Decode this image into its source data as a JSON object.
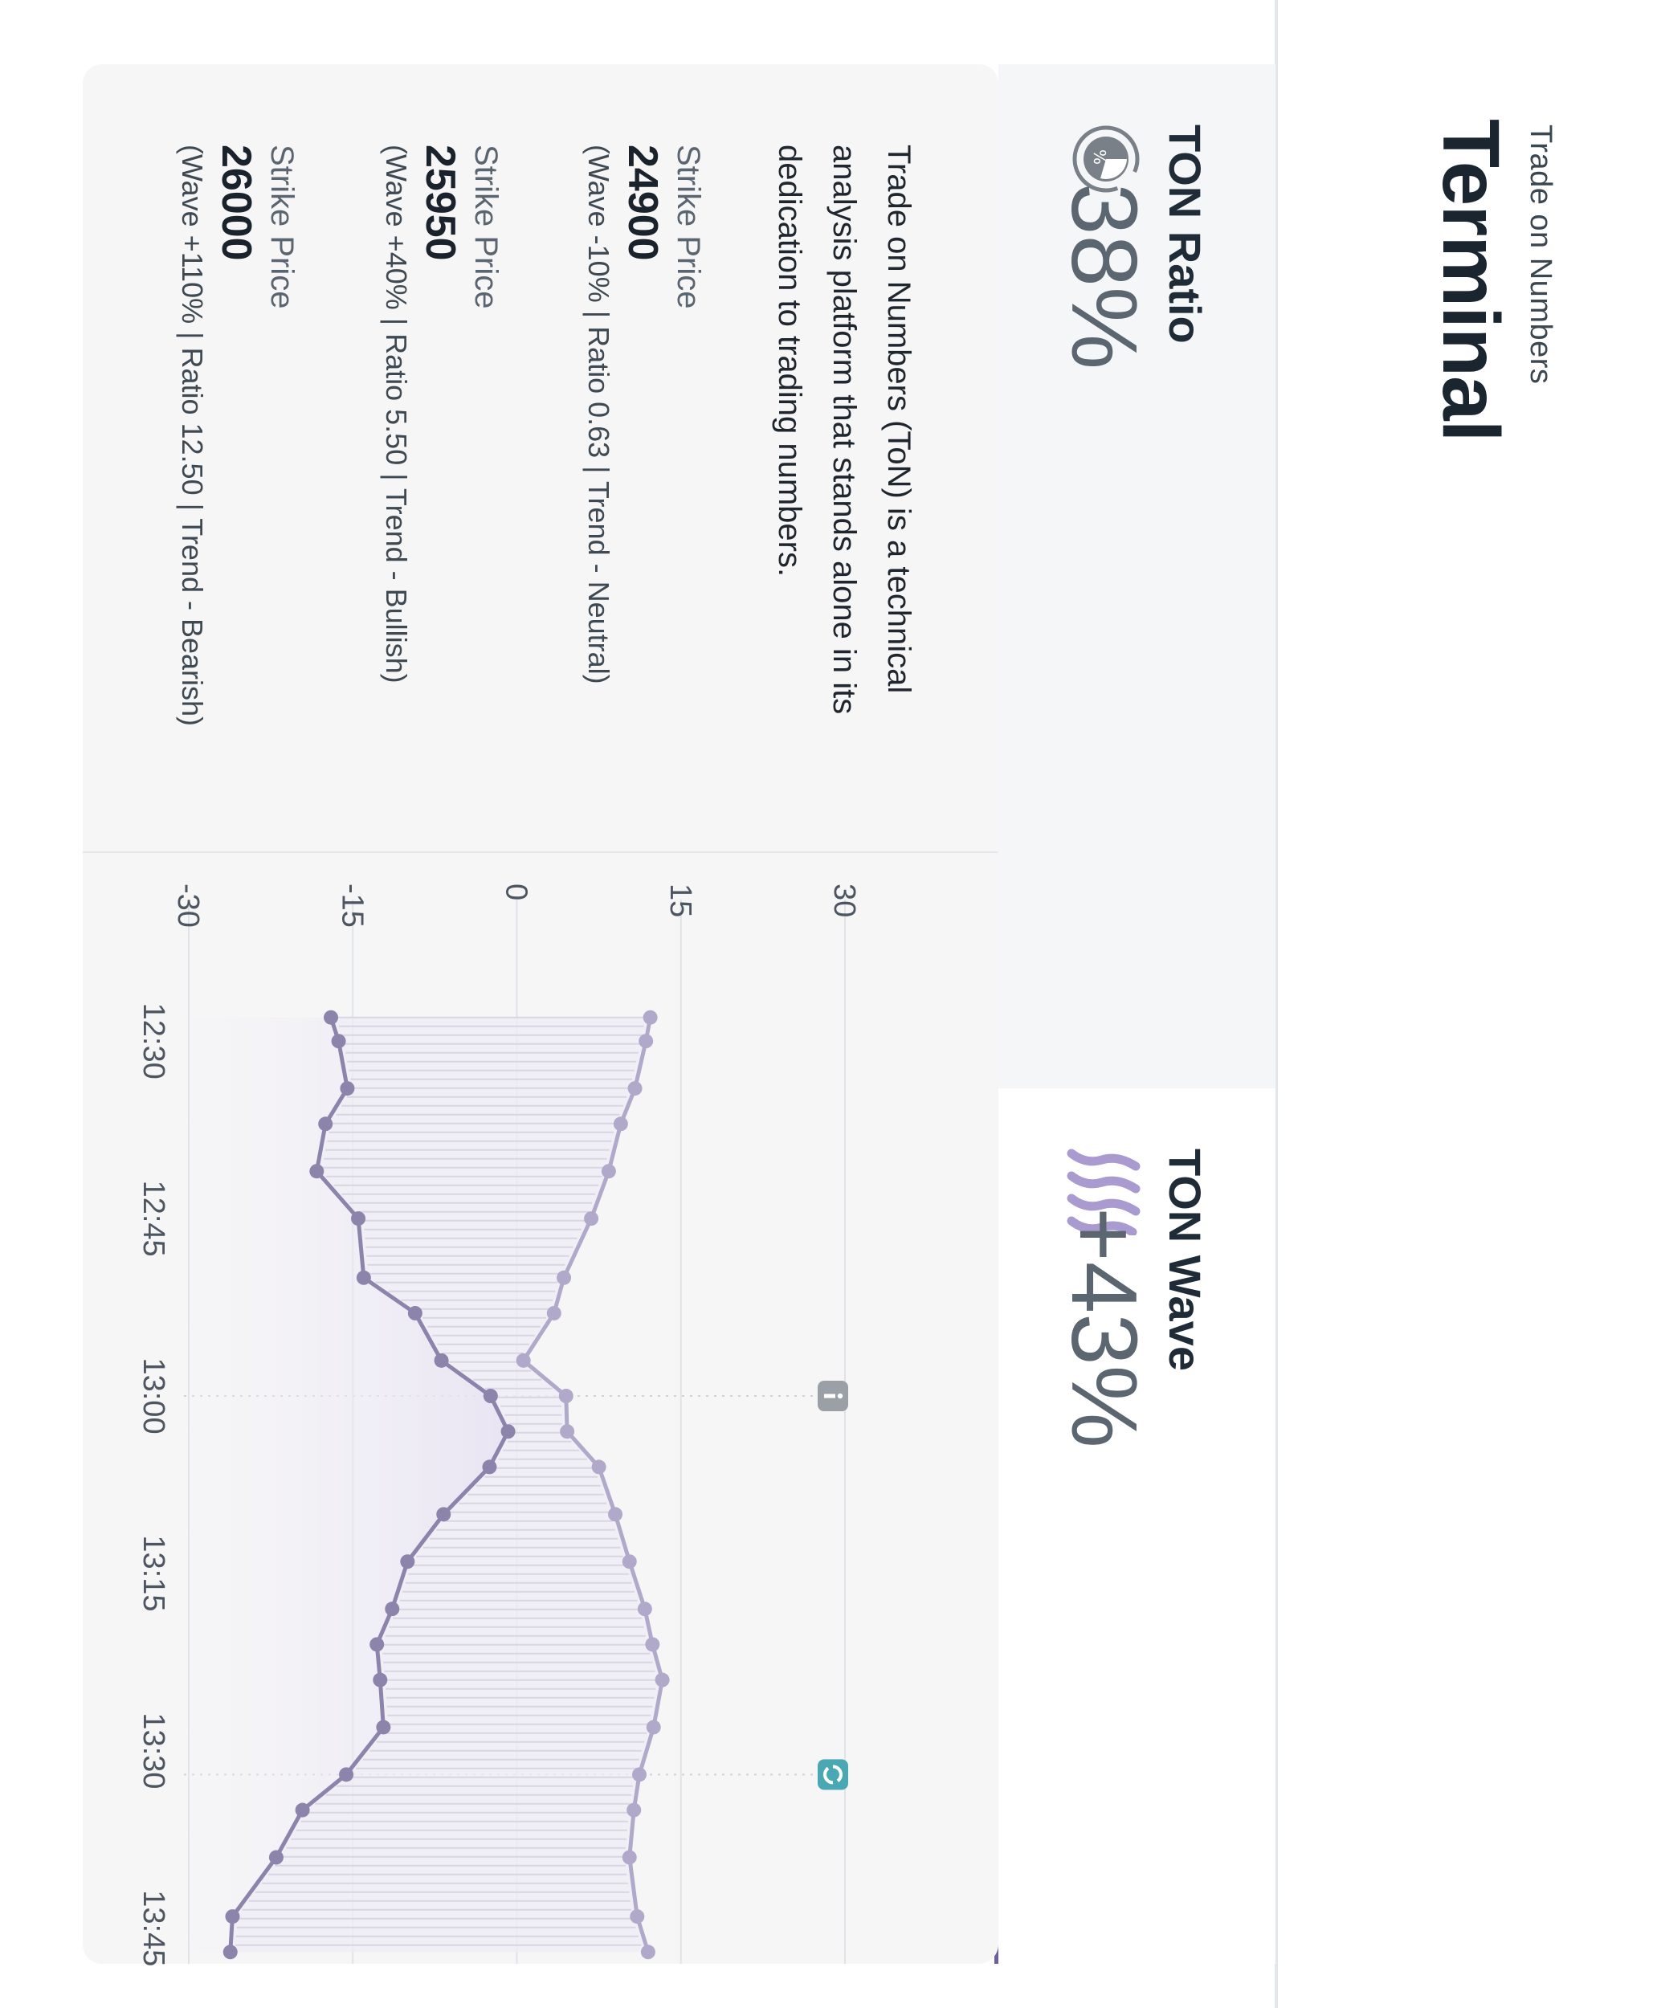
{
  "header": {
    "subtitle": "Trade on Numbers",
    "title": "Terminal"
  },
  "cards": {
    "ratio": {
      "label": "TON Ratio",
      "value": "38%",
      "icon": "ratio-gauge-icon"
    },
    "wave": {
      "label": "TON Wave",
      "value": "+43%",
      "icon": "wave-lines-icon",
      "accent": "#6d5f99"
    }
  },
  "description": "Trade on Numbers (ToN) is a technical analysis platform that stands alone in its dedication to trading numbers.",
  "strikes": [
    {
      "label": "Strike Price",
      "price": "24900",
      "meta": "(Wave -10% | Ratio 0.63 | Trend - Neutral)"
    },
    {
      "label": "Strike Price",
      "price": "25950",
      "meta": "(Wave +40% | Ratio 5.50 | Trend - Bullish)"
    },
    {
      "label": "Strike Price",
      "price": "26000",
      "meta": "(Wave +110% | Ratio 12.50 | Trend - Bearish)"
    }
  ],
  "chart_data": {
    "type": "line",
    "x_ticks": [
      "12:30",
      "12:45",
      "13:00",
      "13:15",
      "13:30",
      "13:45"
    ],
    "y_ticks": [
      "30",
      "15",
      "0",
      "-15",
      "-30"
    ],
    "ylim": [
      -30,
      30
    ],
    "x": [
      "12:28",
      "12:30",
      "12:34",
      "12:37",
      "12:41",
      "12:45",
      "12:50",
      "12:53",
      "12:57",
      "13:00",
      "13:03",
      "13:06",
      "13:10",
      "13:14",
      "13:18",
      "13:21",
      "13:24",
      "13:28",
      "13:32",
      "13:35",
      "13:39",
      "13:44",
      "13:47"
    ],
    "series": [
      {
        "color": "#b1a9c9",
        "values": [
          12.2,
          11.8,
          10.8,
          9.5,
          8.4,
          6.8,
          4.3,
          3.4,
          0.6,
          4.5,
          4.6,
          7.5,
          9.0,
          10.3,
          11.7,
          12.4,
          13.3,
          12.5,
          11.2,
          10.7,
          10.3,
          11.0,
          12.0
        ]
      },
      {
        "color": "#8d84ab",
        "values": [
          -17.0,
          -16.3,
          -15.5,
          -17.5,
          -18.3,
          -14.5,
          -14.0,
          -9.3,
          -6.9,
          -2.4,
          -0.8,
          -2.5,
          -6.7,
          -10.0,
          -11.4,
          -12.8,
          -12.5,
          -12.2,
          -15.6,
          -19.6,
          -22.0,
          -26.0,
          -26.2
        ]
      }
    ],
    "markers": [
      {
        "at": "13:00",
        "icon": "info-marker-icon",
        "color": "#9aa0a6"
      },
      {
        "at": "13:32",
        "icon": "refresh-marker-icon",
        "color": "#4aa8b4"
      }
    ]
  }
}
